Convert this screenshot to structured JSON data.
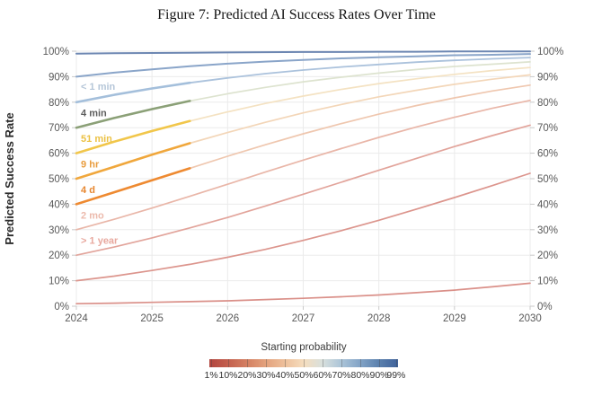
{
  "figure": {
    "title": "Figure 7: Predicted AI Success Rates Over Time"
  },
  "chart_data": {
    "type": "line",
    "title": "Figure 7: Predicted AI Success Rates Over Time",
    "xlabel": "",
    "ylabel": "Predicted Success Rate",
    "xlim": [
      2024,
      2030
    ],
    "ylim": [
      0,
      100
    ],
    "grid": true,
    "x_ticks": [
      2024,
      2025,
      2026,
      2027,
      2028,
      2029,
      2030
    ],
    "y_ticks": [
      0,
      10,
      20,
      30,
      40,
      50,
      60,
      70,
      80,
      90,
      100
    ],
    "y_tick_suffix": "%",
    "dual_y_axis": true,
    "observed_until": 2025.5,
    "x": [
      2024,
      2024.5,
      2025,
      2025.5,
      2026,
      2026.5,
      2027,
      2027.5,
      2028,
      2028.5,
      2029,
      2029.5,
      2030
    ],
    "series": [
      {
        "name": "99%",
        "start": 99,
        "horizon": null,
        "color": "#6d87b2",
        "width": 2.0,
        "values": [
          99.0,
          99.2,
          99.3,
          99.4,
          99.5,
          99.6,
          99.7,
          99.7,
          99.8,
          99.8,
          99.9,
          99.9,
          99.9
        ]
      },
      {
        "name": "90%",
        "start": 90,
        "horizon": null,
        "color": "#8aa5c9",
        "width": 2.0,
        "values": [
          90.0,
          91.6,
          92.9,
          94.1,
          95.1,
          95.9,
          96.6,
          97.2,
          97.6,
          98.0,
          98.4,
          98.6,
          98.9
        ]
      },
      {
        "name": "80%",
        "start": 80,
        "horizon": "< 1 min",
        "color": "#abc2dc",
        "width": 1.8,
        "bold_color": "#a4bfdb",
        "values": [
          80.0,
          82.9,
          85.4,
          87.6,
          89.5,
          91.2,
          92.6,
          93.8,
          94.8,
          95.7,
          96.4,
          97.0,
          97.5
        ]
      },
      {
        "name": "70%",
        "start": 70,
        "horizon": "4 min",
        "color": "#dde3cf",
        "width": 1.7,
        "bold_color": "#8ba077",
        "values": [
          70.0,
          73.8,
          77.3,
          80.5,
          83.3,
          85.8,
          88.0,
          89.8,
          91.4,
          92.8,
          94.0,
          94.9,
          95.8
        ]
      },
      {
        "name": "60%",
        "start": 60,
        "horizon": "51 min",
        "color": "#f4e2c2",
        "width": 1.7,
        "bold_color": "#f1c64a",
        "values": [
          60.0,
          64.5,
          68.7,
          72.6,
          76.2,
          79.5,
          82.4,
          85.0,
          87.3,
          89.2,
          90.9,
          92.4,
          93.6
        ]
      },
      {
        "name": "50%",
        "start": 50,
        "horizon": "9 hr",
        "color": "#f3d6b8",
        "width": 1.7,
        "bold_color": "#f0a73c",
        "values": [
          50.0,
          54.7,
          59.4,
          63.9,
          68.1,
          72.1,
          75.8,
          79.1,
          82.1,
          84.7,
          87.0,
          89.0,
          90.7
        ]
      },
      {
        "name": "40%",
        "start": 40,
        "horizon": "4 d",
        "color": "#efc7af",
        "width": 1.7,
        "bold_color": "#ee8a31",
        "values": [
          40.0,
          44.7,
          49.4,
          54.1,
          58.8,
          63.3,
          67.6,
          71.6,
          75.3,
          78.7,
          81.7,
          84.4,
          86.7
        ]
      },
      {
        "name": "30%",
        "start": 30,
        "horizon": "2 mo",
        "color": "#e9b6a8",
        "width": 1.7,
        "values": [
          30.0,
          34.1,
          38.5,
          43.1,
          47.8,
          52.6,
          57.3,
          61.8,
          66.2,
          70.3,
          74.1,
          77.6,
          80.7
        ]
      },
      {
        "name": "20%",
        "start": 20,
        "horizon": "> 1 year",
        "color": "#e2a49b",
        "width": 1.7,
        "values": [
          20.0,
          23.2,
          26.8,
          30.7,
          34.8,
          39.3,
          43.9,
          48.6,
          53.3,
          58.0,
          62.6,
          66.9,
          71.0
        ]
      },
      {
        "name": "10%",
        "start": 10,
        "horizon": null,
        "color": "#dc958d",
        "width": 1.7,
        "values": [
          10.0,
          11.8,
          14.0,
          16.4,
          19.2,
          22.3,
          25.8,
          29.6,
          33.7,
          38.1,
          42.6,
          47.3,
          52.1
        ]
      },
      {
        "name": "1%",
        "start": 1,
        "horizon": null,
        "color": "#da9089",
        "width": 1.7,
        "values": [
          1.0,
          1.2,
          1.5,
          1.8,
          2.1,
          2.6,
          3.1,
          3.7,
          4.4,
          5.3,
          6.3,
          7.6,
          9.0
        ]
      }
    ],
    "curve_labels": [
      {
        "text": "< 1 min",
        "x": 2024.06,
        "y": 86.2,
        "color": "#b5c6d8"
      },
      {
        "text": "4 min",
        "x": 2024.06,
        "y": 75.8,
        "color": "#5d5d5d"
      },
      {
        "text": "51 min",
        "x": 2024.06,
        "y": 65.8,
        "color": "#ebc144"
      },
      {
        "text": "9 hr",
        "x": 2024.06,
        "y": 55.8,
        "color": "#e99c3d"
      },
      {
        "text": "4 d",
        "x": 2024.06,
        "y": 45.8,
        "color": "#e7862e"
      },
      {
        "text": "2 mo",
        "x": 2024.06,
        "y": 35.8,
        "color": "#ecbaac"
      },
      {
        "text": "> 1 year",
        "x": 2024.06,
        "y": 25.8,
        "color": "#e8a89e"
      }
    ],
    "legend": {
      "title": "Starting probability",
      "position": "bottom",
      "labels": [
        "1%",
        "10%",
        "20%",
        "30%",
        "40%",
        "50%",
        "60%",
        "70%",
        "80%",
        "90%",
        "99%"
      ],
      "fractions": [
        0.01,
        0.1,
        0.2,
        0.3,
        0.4,
        0.5,
        0.6,
        0.7,
        0.8,
        0.9,
        0.99
      ],
      "gradient": [
        "#b2453f",
        "#c4604e",
        "#d48062",
        "#e3a27d",
        "#eec09b",
        "#f5ddbe",
        "#d8e0dd",
        "#abc4d8",
        "#82a3c6",
        "#5a80ad",
        "#3f629b"
      ]
    }
  }
}
